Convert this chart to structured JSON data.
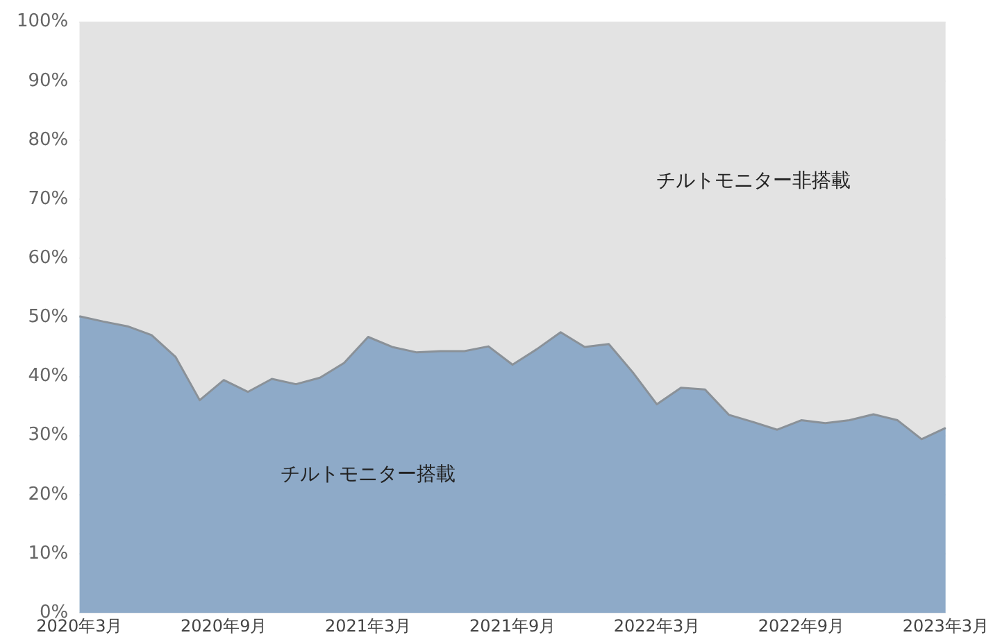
{
  "chart_data": {
    "type": "area",
    "stacked": true,
    "categories": [
      "2020年3月",
      null,
      null,
      null,
      null,
      null,
      "2020年9月",
      null,
      null,
      null,
      null,
      null,
      "2021年3月",
      null,
      null,
      null,
      null,
      null,
      "2021年9月",
      null,
      null,
      null,
      null,
      null,
      "2022年3月",
      null,
      null,
      null,
      null,
      null,
      "2022年9月",
      null,
      null,
      null,
      null,
      null,
      "2023年3月"
    ],
    "series": [
      {
        "name": "チルトモニター搭載",
        "color": "#8eaac8",
        "values": [
          50.2,
          49.3,
          48.5,
          47,
          43.3,
          36,
          39.4,
          37.4,
          39.6,
          38.7,
          39.8,
          42.3,
          46.7,
          45,
          44.1,
          44.3,
          44.3,
          45.1,
          42,
          44.6,
          47.5,
          45,
          45.5,
          40.7,
          35.3,
          38.1,
          37.8,
          33.5,
          32.3,
          31,
          32.6,
          32.1,
          32.6,
          33.6,
          32.6,
          29.4,
          31.3
        ]
      },
      {
        "name": "チルトモニター非搭載",
        "color": "#e3e3e3",
        "values": [
          49.8,
          50.7,
          51.5,
          53,
          56.7,
          64,
          60.6,
          62.6,
          60.4,
          61.3,
          60.2,
          57.7,
          53.3,
          55,
          55.9,
          55.7,
          55.7,
          54.9,
          58,
          55.4,
          52.5,
          55,
          54.5,
          59.3,
          64.7,
          61.9,
          62.2,
          66.5,
          67.7,
          69,
          67.4,
          67.9,
          67.4,
          66.4,
          67.4,
          70.6,
          68.7
        ]
      }
    ],
    "ylim": [
      0,
      100
    ],
    "yticks": [
      {
        "value": 0,
        "label": "0%"
      },
      {
        "value": 10,
        "label": "10%"
      },
      {
        "value": 20,
        "label": "20%"
      },
      {
        "value": 30,
        "label": "30%"
      },
      {
        "value": 40,
        "label": "40%"
      },
      {
        "value": 50,
        "label": "50%"
      },
      {
        "value": 60,
        "label": "60%"
      },
      {
        "value": 70,
        "label": "70%"
      },
      {
        "value": 80,
        "label": "80%"
      },
      {
        "value": 90,
        "label": "90%"
      },
      {
        "value": 100,
        "label": "100%"
      }
    ],
    "grid": "y",
    "legend": false
  }
}
